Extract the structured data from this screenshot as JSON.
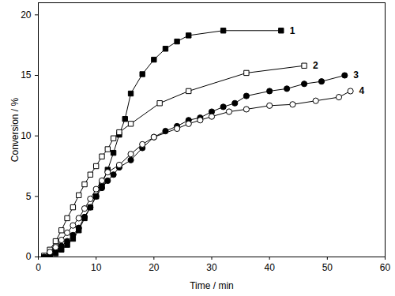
{
  "chart_data": {
    "type": "line",
    "x_label": "Time / min",
    "y_label": "Conversion / %",
    "xlim": [
      0,
      60
    ],
    "xticks": [
      0,
      10,
      20,
      30,
      40,
      50,
      60
    ],
    "ylim": [
      0,
      21
    ],
    "yticks": [
      0,
      5,
      10,
      15,
      20
    ],
    "grid": false,
    "series": [
      {
        "name": "1",
        "color": "#000000",
        "marker": "square",
        "line_style": "solid",
        "x": [
          1,
          2,
          3,
          4,
          5,
          6,
          7,
          8,
          9,
          10,
          11,
          12,
          13,
          14,
          15,
          16,
          18,
          20,
          22,
          24,
          26,
          32,
          42
        ],
        "values": [
          0,
          0.1,
          0.3,
          0.6,
          1.0,
          1.5,
          2.2,
          3.2,
          4.1,
          5.0,
          6.0,
          7.2,
          8.6,
          10.1,
          11.4,
          13.5,
          15.1,
          16.3,
          17.2,
          17.8,
          18.3,
          18.7,
          18.7
        ]
      },
      {
        "name": "2",
        "color": "#000000",
        "marker": "square-open",
        "line_style": "solid",
        "x": [
          1,
          2,
          3,
          4,
          5,
          6,
          7,
          8,
          9,
          10,
          11,
          12,
          13,
          14,
          16,
          21,
          26,
          36,
          46
        ],
        "values": [
          0.1,
          0.6,
          1.3,
          2.2,
          3.2,
          4.1,
          5.1,
          6.0,
          6.8,
          7.5,
          8.3,
          8.9,
          9.8,
          10.3,
          11.0,
          12.7,
          13.7,
          15.2,
          15.8
        ]
      },
      {
        "name": "3",
        "color": "#000000",
        "marker": "circle",
        "line_style": "solid",
        "x": [
          1,
          2,
          3,
          4,
          5,
          6,
          7,
          8,
          9,
          10,
          11,
          12,
          13,
          14,
          16,
          18,
          20,
          22,
          24,
          26,
          28,
          30,
          32,
          34,
          36,
          40,
          43,
          46,
          49,
          53
        ],
        "values": [
          0,
          0.2,
          0.5,
          0.9,
          1.3,
          1.8,
          2.4,
          3.3,
          4.1,
          5.0,
          5.7,
          6.3,
          6.8,
          7.4,
          8.0,
          9.0,
          9.9,
          10.4,
          10.8,
          11.3,
          11.5,
          12.0,
          12.4,
          12.7,
          13.3,
          13.7,
          13.9,
          14.3,
          14.5,
          15.0
        ]
      },
      {
        "name": "4",
        "color": "#000000",
        "marker": "circle-open",
        "line_style": "solid",
        "x": [
          2,
          3,
          4,
          5,
          6,
          7,
          8,
          9,
          10,
          11,
          12,
          14,
          16,
          18,
          20,
          24,
          26,
          28,
          30,
          33,
          36,
          40,
          44,
          48,
          52,
          54
        ],
        "values": [
          0.4,
          0.8,
          1.4,
          2.0,
          2.6,
          3.2,
          4.0,
          4.8,
          5.6,
          6.3,
          7.0,
          7.6,
          8.5,
          9.3,
          9.9,
          10.6,
          11.0,
          11.3,
          11.6,
          12.0,
          12.2,
          12.5,
          12.6,
          12.9,
          13.2,
          13.7
        ]
      }
    ]
  }
}
